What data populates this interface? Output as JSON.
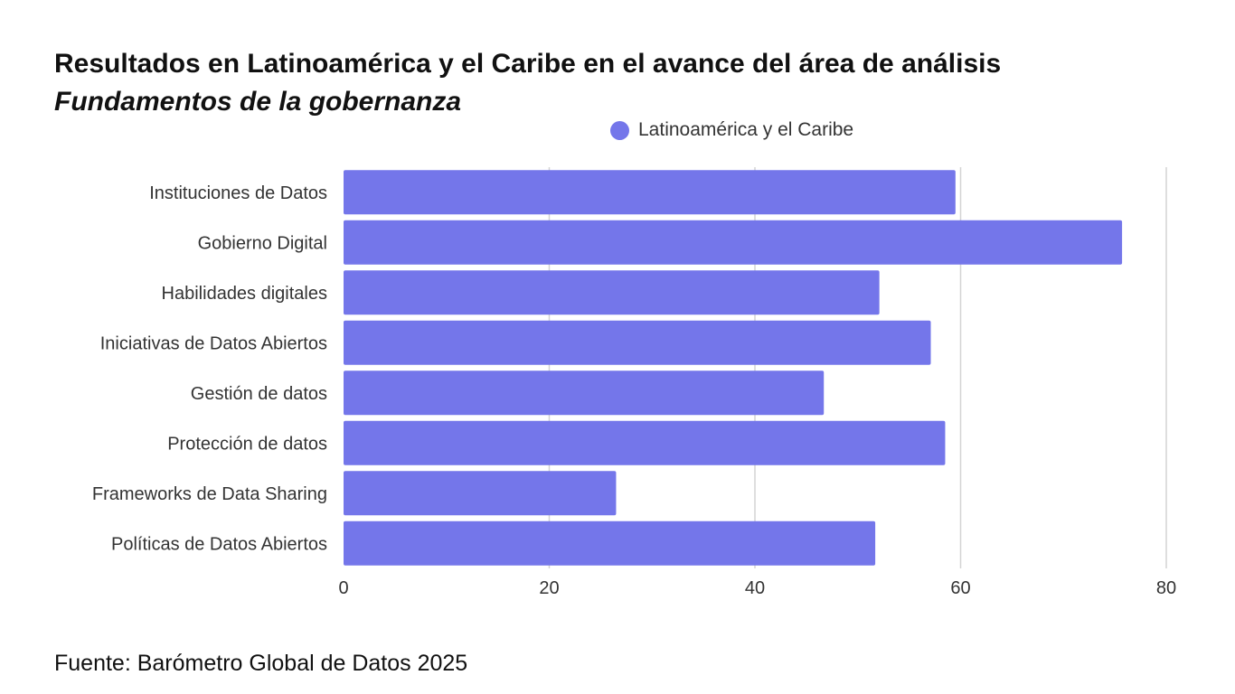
{
  "chart_data": {
    "type": "bar",
    "orientation": "horizontal",
    "title": "Resultados en Latinoamérica y el Caribe en el avance del área de análisis",
    "subtitle": "Fundamentos de la gobernanza",
    "categories": [
      "Instituciones de Datos",
      "Gobierno Digital",
      "Habilidades digitales",
      "Iniciativas de Datos Abiertos",
      "Gestión de datos",
      "Protección de datos",
      "Frameworks de Data Sharing",
      "Políticas de Datos Abiertos"
    ],
    "series": [
      {
        "name": "Latinoamérica y el Caribe",
        "values": [
          59.5,
          75.7,
          52.1,
          57.1,
          46.7,
          58.5,
          26.5,
          51.7
        ],
        "color": "#7476ea"
      }
    ],
    "xlim": [
      0,
      80
    ],
    "xticks": [
      0,
      20,
      40,
      60,
      80
    ],
    "xlabel": "",
    "ylabel": "",
    "grid": true,
    "legend_position": "top"
  },
  "legend": {
    "label": "Latinoamérica y el Caribe"
  },
  "source": "Fuente: Barómetro Global de Datos 2025",
  "colors": {
    "bar": "#7476ea",
    "grid": "#d4d4d4",
    "text": "#333333"
  }
}
